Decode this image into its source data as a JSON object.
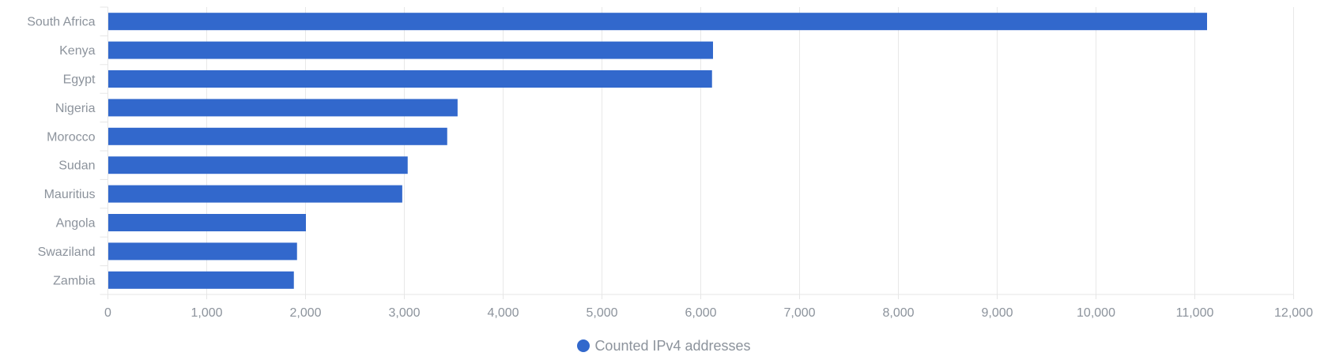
{
  "chart_data": {
    "type": "bar",
    "orientation": "horizontal",
    "categories": [
      "South Africa",
      "Kenya",
      "Egypt",
      "Nigeria",
      "Morocco",
      "Sudan",
      "Mauritius",
      "Angola",
      "Swaziland",
      "Zambia"
    ],
    "series": [
      {
        "name": "Counted IPv4 addresses",
        "color": "#3268cc",
        "values": [
          11120,
          6120,
          6110,
          3535,
          3430,
          3030,
          2975,
          2000,
          1910,
          1878
        ]
      }
    ],
    "xlim": [
      0,
      12000
    ],
    "xticks": [
      0,
      1000,
      2000,
      3000,
      4000,
      5000,
      6000,
      7000,
      8000,
      9000,
      10000,
      11000,
      12000
    ],
    "xtick_labels": [
      "0",
      "1,000",
      "2,000",
      "3,000",
      "4,000",
      "5,000",
      "6,000",
      "7,000",
      "8,000",
      "9,000",
      "10,000",
      "11,000",
      "12,000"
    ],
    "grid": true,
    "legend": "bottom-center",
    "title": "",
    "xlabel": "",
    "ylabel": ""
  }
}
